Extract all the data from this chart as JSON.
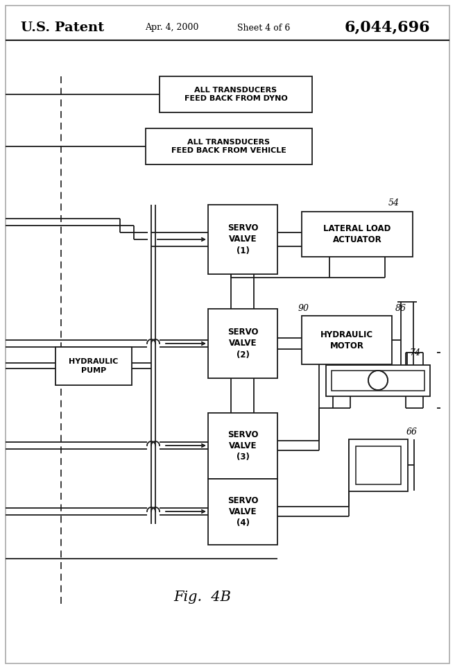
{
  "title_left": "U.S. Patent",
  "title_center": "Apr. 4, 2000",
  "title_sheet": "Sheet 4 of 6",
  "title_right": "6,044,696",
  "fig_label": "Fig.  4B",
  "bg_color": "#ffffff",
  "line_color": "#1a1a1a"
}
